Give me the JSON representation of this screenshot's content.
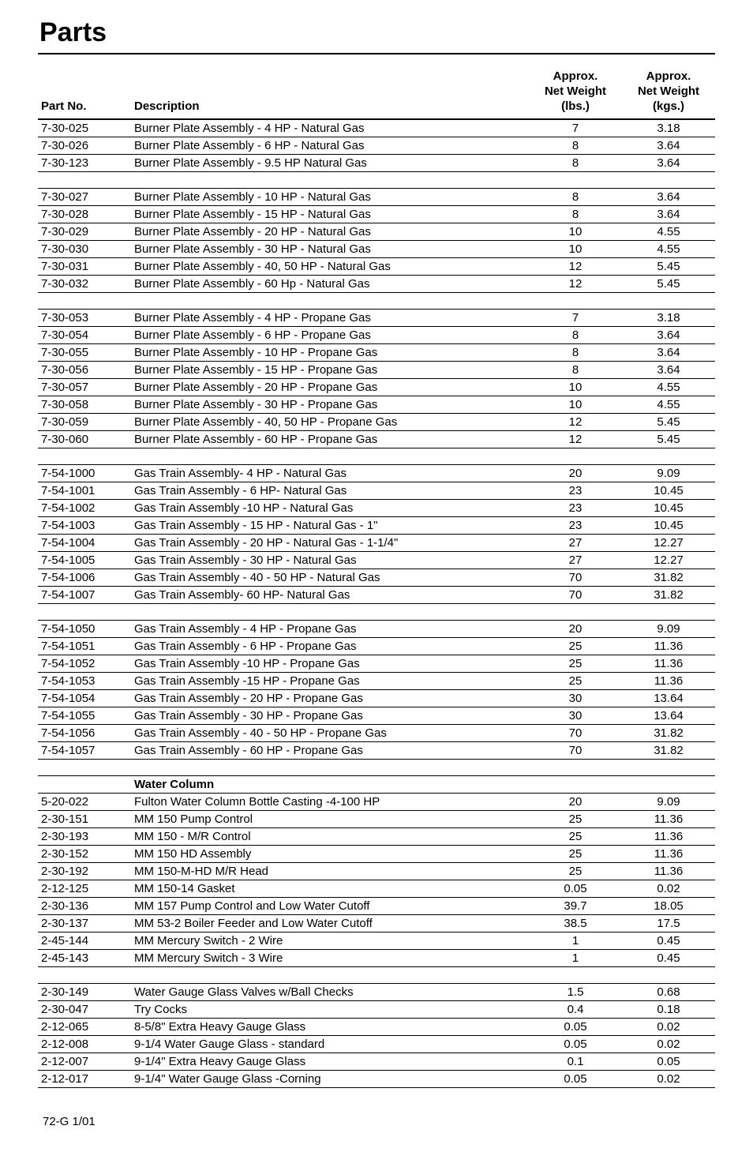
{
  "page_title": "Parts",
  "footer_text": "72-G  1/01",
  "columns": {
    "part_no": "Part No.",
    "description": "Description",
    "lbs_l1": "Approx.",
    "lbs_l2": "Net Weight",
    "lbs_l3": "(lbs.)",
    "kgs_l1": "Approx.",
    "kgs_l2": "Net Weight",
    "kgs_l3": "(kgs.)"
  },
  "groups": [
    {
      "rows": [
        {
          "pn": "7-30-025",
          "desc": "Burner Plate Assembly - 4 HP - Natural Gas",
          "lbs": "7",
          "kgs": "3.18"
        },
        {
          "pn": "7-30-026",
          "desc": "Burner Plate Assembly - 6 HP - Natural Gas",
          "lbs": "8",
          "kgs": "3.64"
        },
        {
          "pn": "7-30-123",
          "desc": "Burner Plate Assembly - 9.5 HP Natural Gas",
          "lbs": "8",
          "kgs": "3.64"
        }
      ]
    },
    {
      "rows": [
        {
          "pn": "7-30-027",
          "desc": "Burner Plate Assembly - 10 HP - Natural Gas",
          "lbs": "8",
          "kgs": "3.64"
        },
        {
          "pn": "7-30-028",
          "desc": "Burner Plate Assembly - 15 HP - Natural Gas",
          "lbs": "8",
          "kgs": "3.64"
        },
        {
          "pn": "7-30-029",
          "desc": "Burner Plate Assembly - 20 HP - Natural Gas",
          "lbs": "10",
          "kgs": "4.55"
        },
        {
          "pn": "7-30-030",
          "desc": "Burner Plate Assembly - 30 HP - Natural Gas",
          "lbs": "10",
          "kgs": "4.55"
        },
        {
          "pn": "7-30-031",
          "desc": "Burner Plate Assembly - 40, 50 HP - Natural Gas",
          "lbs": "12",
          "kgs": "5.45"
        },
        {
          "pn": "7-30-032",
          "desc": "Burner Plate Assembly - 60 Hp - Natural Gas",
          "lbs": "12",
          "kgs": "5.45"
        }
      ]
    },
    {
      "rows": [
        {
          "pn": "7-30-053",
          "desc": "Burner Plate Assembly - 4 HP - Propane Gas",
          "lbs": "7",
          "kgs": "3.18"
        },
        {
          "pn": "7-30-054",
          "desc": "Burner Plate Assembly - 6 HP - Propane Gas",
          "lbs": "8",
          "kgs": "3.64"
        },
        {
          "pn": "7-30-055",
          "desc": "Burner Plate Assembly - 10 HP - Propane Gas",
          "lbs": "8",
          "kgs": "3.64"
        },
        {
          "pn": "7-30-056",
          "desc": "Burner Plate Assembly - 15 HP - Propane Gas",
          "lbs": "8",
          "kgs": "3.64"
        },
        {
          "pn": "7-30-057",
          "desc": "Burner Plate Assembly - 20 HP - Propane Gas",
          "lbs": "10",
          "kgs": "4.55"
        },
        {
          "pn": "7-30-058",
          "desc": "Burner Plate Assembly - 30 HP - Propane Gas",
          "lbs": "10",
          "kgs": "4.55"
        },
        {
          "pn": "7-30-059",
          "desc": "Burner Plate Assembly - 40, 50 HP - Propane Gas",
          "lbs": "12",
          "kgs": "5.45"
        },
        {
          "pn": "7-30-060",
          "desc": "Burner Plate Assembly - 60 HP - Propane Gas",
          "lbs": "12",
          "kgs": "5.45"
        }
      ]
    },
    {
      "rows": [
        {
          "pn": "7-54-1000",
          "desc": "Gas Train  Assembly- 4 HP - Natural Gas",
          "lbs": "20",
          "kgs": "9.09"
        },
        {
          "pn": "7-54-1001",
          "desc": "Gas Train Assembly - 6 HP- Natural Gas",
          "lbs": "23",
          "kgs": "10.45"
        },
        {
          "pn": "7-54-1002",
          "desc": "Gas Train Assembly -10 HP - Natural Gas",
          "lbs": "23",
          "kgs": "10.45"
        },
        {
          "pn": "7-54-1003",
          "desc": "Gas Train Assembly - 15 HP - Natural Gas - 1\"",
          "lbs": "23",
          "kgs": "10.45"
        },
        {
          "pn": "7-54-1004",
          "desc": "Gas Train Assembly - 20 HP - Natural Gas - 1-1/4\"",
          "lbs": "27",
          "kgs": "12.27"
        },
        {
          "pn": "7-54-1005",
          "desc": "Gas Train  Assembly - 30 HP - Natural Gas",
          "lbs": "27",
          "kgs": "12.27"
        },
        {
          "pn": "7-54-1006",
          "desc": "Gas Train  Assembly - 40 - 50 HP - Natural Gas",
          "lbs": "70",
          "kgs": "31.82"
        },
        {
          "pn": "7-54-1007",
          "desc": "Gas Train  Assembly- 60 HP- Natural Gas",
          "lbs": "70",
          "kgs": "31.82"
        }
      ]
    },
    {
      "rows": [
        {
          "pn": "7-54-1050",
          "desc": "Gas Train  Assembly - 4 HP - Propane Gas",
          "lbs": "20",
          "kgs": "9.09"
        },
        {
          "pn": "7-54-1051",
          "desc": "Gas Train  Assembly - 6 HP - Propane Gas",
          "lbs": "25",
          "kgs": "11.36"
        },
        {
          "pn": "7-54-1052",
          "desc": "Gas Train  Assembly -10 HP - Propane Gas",
          "lbs": "25",
          "kgs": "11.36"
        },
        {
          "pn": "7-54-1053",
          "desc": "Gas Train  Assembly -15 HP - Propane Gas",
          "lbs": "25",
          "kgs": "11.36"
        },
        {
          "pn": "7-54-1054",
          "desc": "Gas Train  Assembly - 20 HP - Propane Gas",
          "lbs": "30",
          "kgs": "13.64"
        },
        {
          "pn": "7-54-1055",
          "desc": "Gas Train  Assembly - 30 HP - Propane Gas",
          "lbs": "30",
          "kgs": "13.64"
        },
        {
          "pn": "7-54-1056",
          "desc": "Gas Train  Assembly - 40 - 50 HP - Propane Gas",
          "lbs": "70",
          "kgs": "31.82"
        },
        {
          "pn": "7-54-1057",
          "desc": "Gas Train  Assembly - 60 HP - Propane Gas",
          "lbs": "70",
          "kgs": "31.82"
        }
      ]
    },
    {
      "section_label": "Water Column",
      "rows": [
        {
          "pn": "5-20-022",
          "desc": "Fulton Water Column Bottle Casting -4-100 HP",
          "lbs": "20",
          "kgs": "9.09"
        },
        {
          "pn": "2-30-151",
          "desc": "MM 150 Pump Control",
          "lbs": "25",
          "kgs": "11.36"
        },
        {
          "pn": "2-30-193",
          "desc": "MM 150 - M/R Control",
          "lbs": "25",
          "kgs": "11.36"
        },
        {
          "pn": "2-30-152",
          "desc": "MM 150 HD Assembly",
          "lbs": "25",
          "kgs": "11.36"
        },
        {
          "pn": "2-30-192",
          "desc": "MM 150-M-HD M/R Head",
          "lbs": "25",
          "kgs": "11.36"
        },
        {
          "pn": "2-12-125",
          "desc": "MM 150-14 Gasket",
          "lbs": "0.05",
          "kgs": "0.02"
        },
        {
          "pn": "2-30-136",
          "desc": "MM 157 Pump Control and Low Water Cutoff",
          "lbs": "39.7",
          "kgs": "18.05"
        },
        {
          "pn": "2-30-137",
          "desc": "MM 53-2 Boiler Feeder and Low Water Cutoff",
          "lbs": "38.5",
          "kgs": "17.5"
        },
        {
          "pn": "2-45-144",
          "desc": "MM Mercury Switch - 2 Wire",
          "lbs": "1",
          "kgs": "0.45"
        },
        {
          "pn": "2-45-143",
          "desc": "MM Mercury Switch - 3 Wire",
          "lbs": "1",
          "kgs": "0.45"
        }
      ]
    },
    {
      "rows": [
        {
          "pn": "2-30-149",
          "desc": "Water Gauge Glass Valves w/Ball Checks",
          "lbs": "1.5",
          "kgs": "0.68"
        },
        {
          "pn": "2-30-047",
          "desc": "Try Cocks",
          "lbs": "0.4",
          "kgs": "0.18"
        },
        {
          "pn": "2-12-065",
          "desc": "8-5/8\" Extra Heavy Gauge Glass",
          "lbs": "0.05",
          "kgs": "0.02"
        },
        {
          "pn": "2-12-008",
          "desc": "9-1/4 Water Gauge Glass - standard",
          "lbs": "0.05",
          "kgs": "0.02"
        },
        {
          "pn": "2-12-007",
          "desc": "9-1/4\" Extra Heavy Gauge Glass",
          "lbs": "0.1",
          "kgs": "0.05"
        },
        {
          "pn": "2-12-017",
          "desc": "9-1/4\" Water Gauge Glass -Corning",
          "lbs": "0.05",
          "kgs": "0.02"
        }
      ]
    }
  ]
}
